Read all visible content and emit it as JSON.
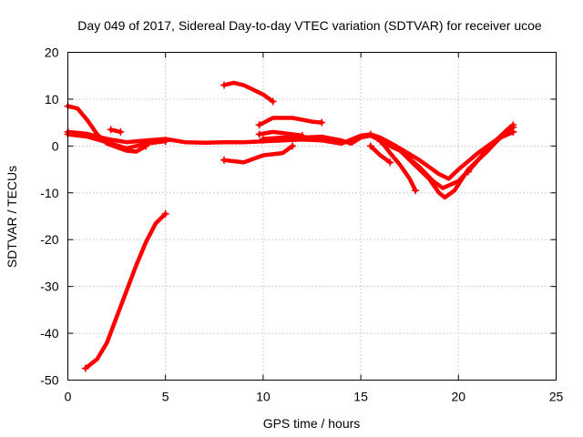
{
  "chart_data": {
    "type": "line",
    "title": "Day 049 of 2017, Sidereal Day-to-day VTEC variation (SDTVAR) for receiver ucoe",
    "xlabel": "GPS time / hours",
    "ylabel": "SDTVAR / TECUs",
    "xlim": [
      0,
      25
    ],
    "ylim": [
      -50,
      20
    ],
    "xticks": [
      0,
      5,
      10,
      15,
      20,
      25
    ],
    "yticks": [
      -50,
      -40,
      -30,
      -20,
      -10,
      0,
      10,
      20
    ],
    "xtick_labels": [
      "0",
      "5",
      "10",
      "15",
      "20",
      "25"
    ],
    "ytick_labels": [
      "-50",
      "-40",
      "-30",
      "-20",
      "-10",
      "0",
      "10",
      "20"
    ],
    "grid": true,
    "color": "#ff0000",
    "series": [
      {
        "name": "s1",
        "points": [
          [
            0,
            3
          ],
          [
            1,
            2.6
          ],
          [
            2,
            1.5
          ],
          [
            3,
            0.8
          ],
          [
            4,
            1.2
          ],
          [
            5,
            1.5
          ],
          [
            6,
            0.8
          ],
          [
            7,
            0.7
          ],
          [
            8,
            0.8
          ],
          [
            9,
            0.8
          ],
          [
            10,
            1
          ],
          [
            11,
            1.2
          ],
          [
            12,
            1.4
          ],
          [
            13,
            1.2
          ],
          [
            14,
            0.5
          ],
          [
            15,
            2.2
          ],
          [
            15.5,
            2.5
          ],
          [
            16,
            1.5
          ],
          [
            17,
            -0.5
          ],
          [
            18,
            -3
          ],
          [
            19,
            -6
          ],
          [
            19.5,
            -7
          ],
          [
            20,
            -5
          ],
          [
            21,
            -1.5
          ],
          [
            22,
            1.5
          ],
          [
            22.8,
            3
          ]
        ]
      },
      {
        "name": "s2",
        "points": [
          [
            0,
            2.5
          ],
          [
            1,
            2
          ],
          [
            2,
            0.8
          ],
          [
            3,
            -0.5
          ],
          [
            4,
            0.5
          ],
          [
            5,
            1
          ]
        ]
      },
      {
        "name": "s3",
        "points": [
          [
            0,
            8.5
          ],
          [
            0.5,
            8
          ],
          [
            1,
            5.5
          ],
          [
            1.5,
            2.5
          ],
          [
            2,
            0.5
          ],
          [
            3,
            -1
          ],
          [
            3.5,
            -1.2
          ],
          [
            4,
            0
          ]
        ]
      },
      {
        "name": "s4",
        "points": [
          [
            2.2,
            3.5
          ],
          [
            2.7,
            3
          ]
        ]
      },
      {
        "name": "s5",
        "points": [
          [
            0.9,
            -47.5
          ],
          [
            1.5,
            -45.5
          ],
          [
            2,
            -42
          ],
          [
            2.5,
            -36.5
          ],
          [
            3,
            -31
          ],
          [
            3.5,
            -25.5
          ],
          [
            4,
            -20.5
          ],
          [
            4.5,
            -16.5
          ],
          [
            5,
            -14.5
          ]
        ]
      },
      {
        "name": "s6",
        "points": [
          [
            8,
            13
          ],
          [
            8.5,
            13.5
          ],
          [
            9,
            13
          ],
          [
            10,
            11
          ],
          [
            10.5,
            9.5
          ]
        ]
      },
      {
        "name": "s7",
        "points": [
          [
            9.8,
            4.5
          ],
          [
            10.5,
            6
          ],
          [
            11.5,
            6
          ],
          [
            12.5,
            5.2
          ],
          [
            13,
            5
          ]
        ]
      },
      {
        "name": "s8",
        "points": [
          [
            8,
            -3
          ],
          [
            9,
            -3.5
          ],
          [
            10,
            -2
          ],
          [
            11,
            -1.5
          ],
          [
            11.5,
            0
          ]
        ]
      },
      {
        "name": "s9",
        "points": [
          [
            9.8,
            2.5
          ],
          [
            10.5,
            3
          ],
          [
            11.5,
            2.5
          ],
          [
            12,
            2.2
          ]
        ]
      },
      {
        "name": "s10",
        "points": [
          [
            10,
            1.5
          ],
          [
            11,
            1.8
          ],
          [
            12,
            1.8
          ],
          [
            13,
            2
          ],
          [
            14,
            1.2
          ],
          [
            14.5,
            0.5
          ],
          [
            15,
            1.8
          ],
          [
            15.5,
            2.2
          ],
          [
            16,
            1.2
          ],
          [
            16.5,
            -1.5
          ],
          [
            17,
            -4
          ],
          [
            17.5,
            -7
          ],
          [
            17.8,
            -9.5
          ]
        ]
      },
      {
        "name": "s11",
        "points": [
          [
            15.5,
            0
          ],
          [
            16,
            -2
          ],
          [
            16.5,
            -3.5
          ]
        ]
      },
      {
        "name": "s12",
        "points": [
          [
            15.5,
            2.5
          ],
          [
            16,
            1.8
          ],
          [
            16.8,
            0
          ],
          [
            17.5,
            -3
          ],
          [
            18.5,
            -7
          ],
          [
            19,
            -10
          ],
          [
            19.3,
            -11
          ],
          [
            19.8,
            -9.5
          ],
          [
            20.5,
            -5
          ],
          [
            21.5,
            -1
          ],
          [
            22,
            1.5
          ],
          [
            22.8,
            3
          ]
        ]
      },
      {
        "name": "s13",
        "points": [
          [
            16,
            1
          ],
          [
            17,
            -1
          ],
          [
            18,
            -4.5
          ],
          [
            18.7,
            -7.5
          ],
          [
            19.2,
            -9
          ],
          [
            20,
            -7.5
          ],
          [
            20.8,
            -4
          ],
          [
            21.5,
            -0.5
          ],
          [
            22.5,
            3.5
          ],
          [
            22.8,
            4.5
          ]
        ]
      },
      {
        "name": "s14",
        "points": [
          [
            20.5,
            -5.5
          ],
          [
            21,
            -3
          ],
          [
            21.5,
            -1
          ],
          [
            22,
            1.2
          ],
          [
            22.5,
            3
          ],
          [
            22.8,
            4
          ]
        ]
      }
    ]
  }
}
